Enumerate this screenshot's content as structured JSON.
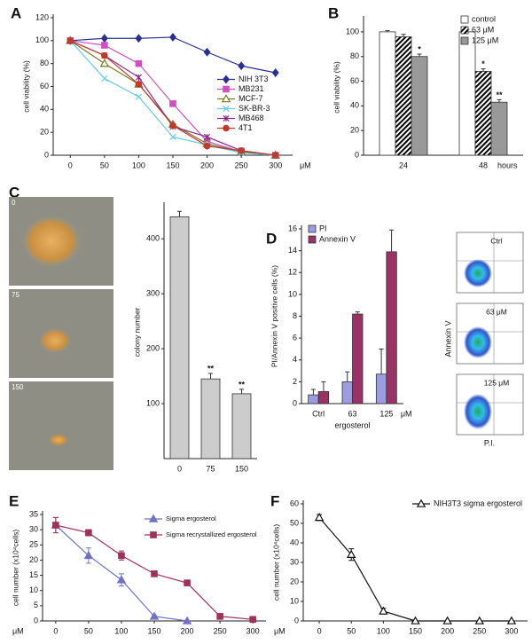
{
  "chart_data": [
    {
      "type": "line",
      "panel": "A",
      "ylabel": "cell viability (%)",
      "xunit": "μM",
      "xunit_position": "right",
      "x": [
        0,
        50,
        100,
        150,
        200,
        250,
        300
      ],
      "xlim": [
        -25,
        325
      ],
      "xticks": [
        0,
        50,
        100,
        150,
        200,
        250,
        300
      ],
      "ylim": [
        0,
        120
      ],
      "yticks": [
        0,
        20,
        40,
        60,
        80,
        100,
        120
      ],
      "legend": "right",
      "series": [
        {
          "name": "NIH 3T3",
          "color": "#2b2f8f",
          "marker": "diamond",
          "values": [
            100,
            102,
            102,
            103,
            90,
            78,
            72
          ]
        },
        {
          "name": "MB231",
          "color": "#d04fc0",
          "marker": "square",
          "values": [
            100,
            96,
            80,
            45,
            12,
            3,
            0
          ]
        },
        {
          "name": "MCF-7",
          "color": "#7a7a20",
          "marker": "triangle-open",
          "values": [
            100,
            80,
            62,
            27,
            10,
            3,
            0
          ]
        },
        {
          "name": "SK-BR-3",
          "color": "#66ccee",
          "marker": "x",
          "values": [
            100,
            67,
            51,
            16,
            9,
            2,
            0
          ]
        },
        {
          "name": "MB468",
          "color": "#8a2a8a",
          "marker": "star",
          "values": [
            100,
            87,
            68,
            25,
            16,
            4,
            0
          ]
        },
        {
          "name": "4T1",
          "color": "#c0392b",
          "marker": "circle",
          "values": [
            100,
            87,
            62,
            26,
            8,
            4,
            0
          ]
        }
      ]
    },
    {
      "type": "bar",
      "panel": "B",
      "ylabel": "cell viability (%)",
      "xunit": "hours",
      "xunit_position": "right",
      "categories": [
        "24",
        "48"
      ],
      "ylim": [
        0,
        110
      ],
      "yticks": [
        0,
        20,
        40,
        60,
        80,
        100
      ],
      "legend": "upper right",
      "series": [
        {
          "name": "control",
          "color": "#ffffff",
          "values": [
            100,
            100
          ],
          "errors": [
            1,
            2
          ]
        },
        {
          "name": "63 μM",
          "color": "#000000",
          "pattern": "hatch",
          "values": [
            96,
            68
          ],
          "errors": [
            2,
            2
          ],
          "significance": [
            null,
            "*"
          ]
        },
        {
          "name": "125 μM",
          "color": "#999999",
          "values": [
            80,
            43
          ],
          "errors": [
            2,
            2
          ],
          "significance": [
            "*",
            "**"
          ]
        }
      ]
    },
    {
      "type": "bar",
      "panel": "C",
      "ylabel": "colony number",
      "image_labels": [
        "0",
        "75",
        "150"
      ],
      "categories": [
        "0",
        "75",
        "150"
      ],
      "ylim": [
        0,
        460
      ],
      "yticks": [
        100,
        200,
        300,
        400
      ],
      "series": [
        {
          "color": "#cccccc",
          "values": [
            440,
            145,
            118
          ],
          "errors": [
            10,
            10,
            8
          ],
          "significance": [
            null,
            "**",
            "**"
          ]
        }
      ]
    },
    {
      "type": "bar",
      "panel": "D",
      "ylabel": "PI/Annexin V positive cells (%)",
      "xlabel": "ergosterol",
      "xunit": "μM",
      "xunit_position": "right",
      "categories": [
        "Ctrl",
        "63",
        "125"
      ],
      "ylim": [
        0,
        16
      ],
      "yticks": [
        0,
        2,
        4,
        6,
        8,
        10,
        12,
        14,
        16
      ],
      "legend": "upper left",
      "flow_labels": [
        "Ctrl",
        "63 μM",
        "125 μM"
      ],
      "flow_xlabel": "P.I.",
      "flow_ylabel": "Annexin V",
      "series": [
        {
          "name": "PI",
          "color": "#9c9ce0",
          "values": [
            0.8,
            2.0,
            2.7
          ],
          "errors": [
            0.5,
            0.9,
            2.3
          ]
        },
        {
          "name": "Annexin V",
          "color": "#993366",
          "values": [
            1.1,
            8.2,
            13.9
          ],
          "errors": [
            0.9,
            0.2,
            2.0
          ]
        }
      ]
    },
    {
      "type": "line",
      "panel": "E",
      "ylabel": "cell number (x10⁴cells)",
      "xunit": "μM",
      "xunit_position": "left",
      "x": [
        0,
        50,
        100,
        150,
        200,
        250,
        300
      ],
      "xlim": [
        -20,
        320
      ],
      "xticks": [
        0,
        50,
        100,
        150,
        200,
        250,
        300
      ],
      "ylim": [
        0,
        35
      ],
      "yticks": [
        0,
        5,
        10,
        15,
        20,
        25,
        30,
        35
      ],
      "legend": "upper right",
      "series": [
        {
          "name": "Sigma ergosterol",
          "color": "#7070c8",
          "marker": "triangle",
          "values": [
            31.5,
            21.5,
            13.5,
            1.5,
            0,
            null,
            null
          ],
          "errors": [
            2.5,
            2.5,
            2,
            0.3,
            0,
            null,
            null
          ]
        },
        {
          "name": "Sigma recrystallized ergosterol",
          "color": "#a0305a",
          "marker": "square",
          "values": [
            31.5,
            29,
            21.5,
            15.5,
            12.5,
            1.5,
            0.5
          ],
          "errors": [
            2.5,
            1,
            1.5,
            0.5,
            0.5,
            0.3,
            0.2
          ]
        }
      ]
    },
    {
      "type": "line",
      "panel": "F",
      "ylabel": "cell number (x10⁴cells)",
      "xunit": "μM",
      "xunit_position": "left",
      "x": [
        0,
        50,
        100,
        150,
        200,
        250,
        300
      ],
      "xlim": [
        -25,
        325
      ],
      "xticks": [
        0,
        50,
        100,
        150,
        200,
        250,
        300
      ],
      "ylim": [
        0,
        60
      ],
      "yticks": [
        0,
        10,
        20,
        30,
        40,
        50,
        60
      ],
      "legend": "upper right",
      "series": [
        {
          "name": "NIH3T3 sigma ergosterol",
          "color": "#111111",
          "marker": "triangle-open",
          "values": [
            53,
            34,
            5,
            0,
            0,
            0,
            0
          ],
          "errors": [
            1.5,
            3,
            1.5,
            0,
            0,
            0,
            0
          ]
        }
      ]
    }
  ]
}
